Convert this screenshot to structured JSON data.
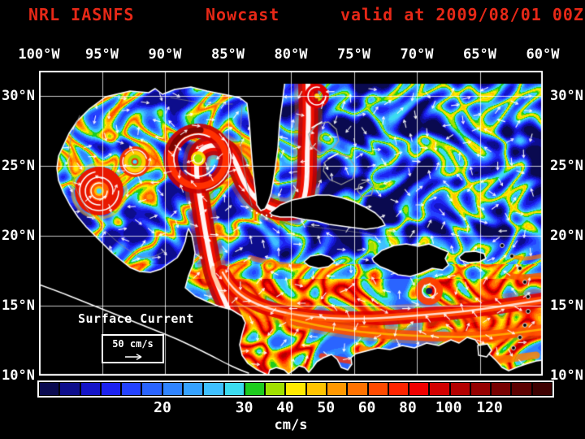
{
  "title": {
    "model": "NRL IASNFS",
    "product": "Nowcast",
    "valid": "valid at 2009/08/01 00Z",
    "color": "#e62817"
  },
  "map": {
    "lon_labels": [
      {
        "text": "100°W",
        "lon": 100
      },
      {
        "text": "95°W",
        "lon": 95
      },
      {
        "text": "90°W",
        "lon": 90
      },
      {
        "text": "85°W",
        "lon": 85
      },
      {
        "text": "80°W",
        "lon": 80
      },
      {
        "text": "75°W",
        "lon": 75
      },
      {
        "text": "70°W",
        "lon": 70
      },
      {
        "text": "65°W",
        "lon": 65
      },
      {
        "text": "60°W",
        "lon": 60
      }
    ],
    "lat_labels": [
      {
        "text": "30°N",
        "lat": 30
      },
      {
        "text": "25°N",
        "lat": 25
      },
      {
        "text": "20°N",
        "lat": 20
      },
      {
        "text": "15°N",
        "lat": 15
      },
      {
        "text": "10°N",
        "lat": 10
      }
    ],
    "grid_lons": [
      95,
      90,
      85,
      80,
      75,
      70,
      65
    ],
    "grid_lats": [
      30,
      25,
      20,
      15
    ]
  },
  "annotation": {
    "label": "Surface Current",
    "scale_label": "50 cm/s"
  },
  "colorbar": {
    "unit": "cm/s",
    "ticks": [
      {
        "text": "20",
        "boundary": 6
      },
      {
        "text": "30",
        "boundary": 10
      },
      {
        "text": "40",
        "boundary": 12
      },
      {
        "text": "50",
        "boundary": 14
      },
      {
        "text": "60",
        "boundary": 16
      },
      {
        "text": "80",
        "boundary": 18
      },
      {
        "text": "100",
        "boundary": 20
      },
      {
        "text": "120",
        "boundary": 22
      }
    ],
    "colors": [
      "#0a0a50",
      "#0d0d8c",
      "#1414c8",
      "#1c22f0",
      "#2442ff",
      "#2a64ff",
      "#3084ff",
      "#36a2ff",
      "#3fc0ff",
      "#3cdcf0",
      "#1ecc1e",
      "#a0e000",
      "#ffea00",
      "#ffc400",
      "#ff9800",
      "#ff7200",
      "#ff4a00",
      "#ff2400",
      "#f00000",
      "#d20000",
      "#b40000",
      "#960000",
      "#780000",
      "#5c0000",
      "#3e0000"
    ]
  },
  "chart_data": {
    "type": "heatmap",
    "title": "NRL IASNFS Nowcast valid at 2009/08/01 00Z",
    "variable": "Surface Current",
    "units": "cm/s",
    "x_ticks": [
      "100°W",
      "95°W",
      "90°W",
      "85°W",
      "80°W",
      "75°W",
      "70°W",
      "65°W",
      "60°W"
    ],
    "y_ticks": [
      "30°N",
      "25°N",
      "20°N",
      "15°N",
      "10°N"
    ],
    "colorbar_values": [
      20,
      30,
      40,
      50,
      60,
      80,
      100,
      120
    ],
    "reference_vector_cm_s": 50
  }
}
